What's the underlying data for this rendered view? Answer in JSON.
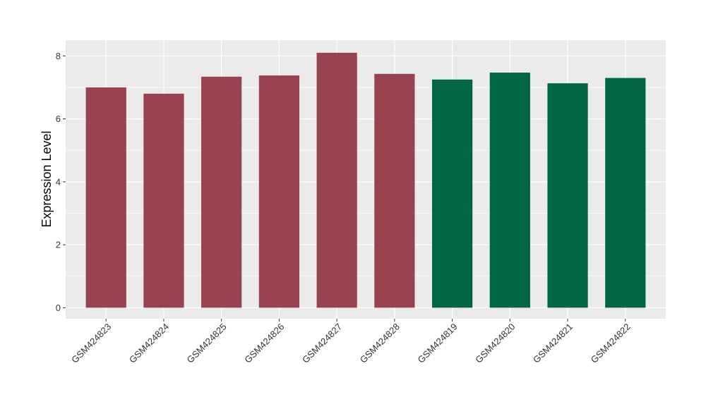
{
  "chart_data": {
    "type": "bar",
    "title": "",
    "xlabel": "",
    "ylabel": "Expression Level",
    "ylim": [
      -0.35,
      8.5
    ],
    "yticks": [
      0,
      2,
      4,
      6,
      8
    ],
    "grid": true,
    "background_color": "#ebebeb",
    "grid_color": "#ffffff",
    "categories": [
      "GSM424823",
      "GSM424824",
      "GSM424825",
      "GSM424826",
      "GSM424827",
      "GSM424828",
      "GSM424819",
      "GSM424820",
      "GSM424821",
      "GSM424822"
    ],
    "values": [
      7.0,
      6.8,
      7.34,
      7.38,
      8.1,
      7.43,
      7.25,
      7.47,
      7.13,
      7.3
    ],
    "bar_colors": [
      "#98434f",
      "#98434f",
      "#98434f",
      "#98434f",
      "#98434f",
      "#98434f",
      "#006644",
      "#006644",
      "#006644",
      "#006644"
    ]
  }
}
